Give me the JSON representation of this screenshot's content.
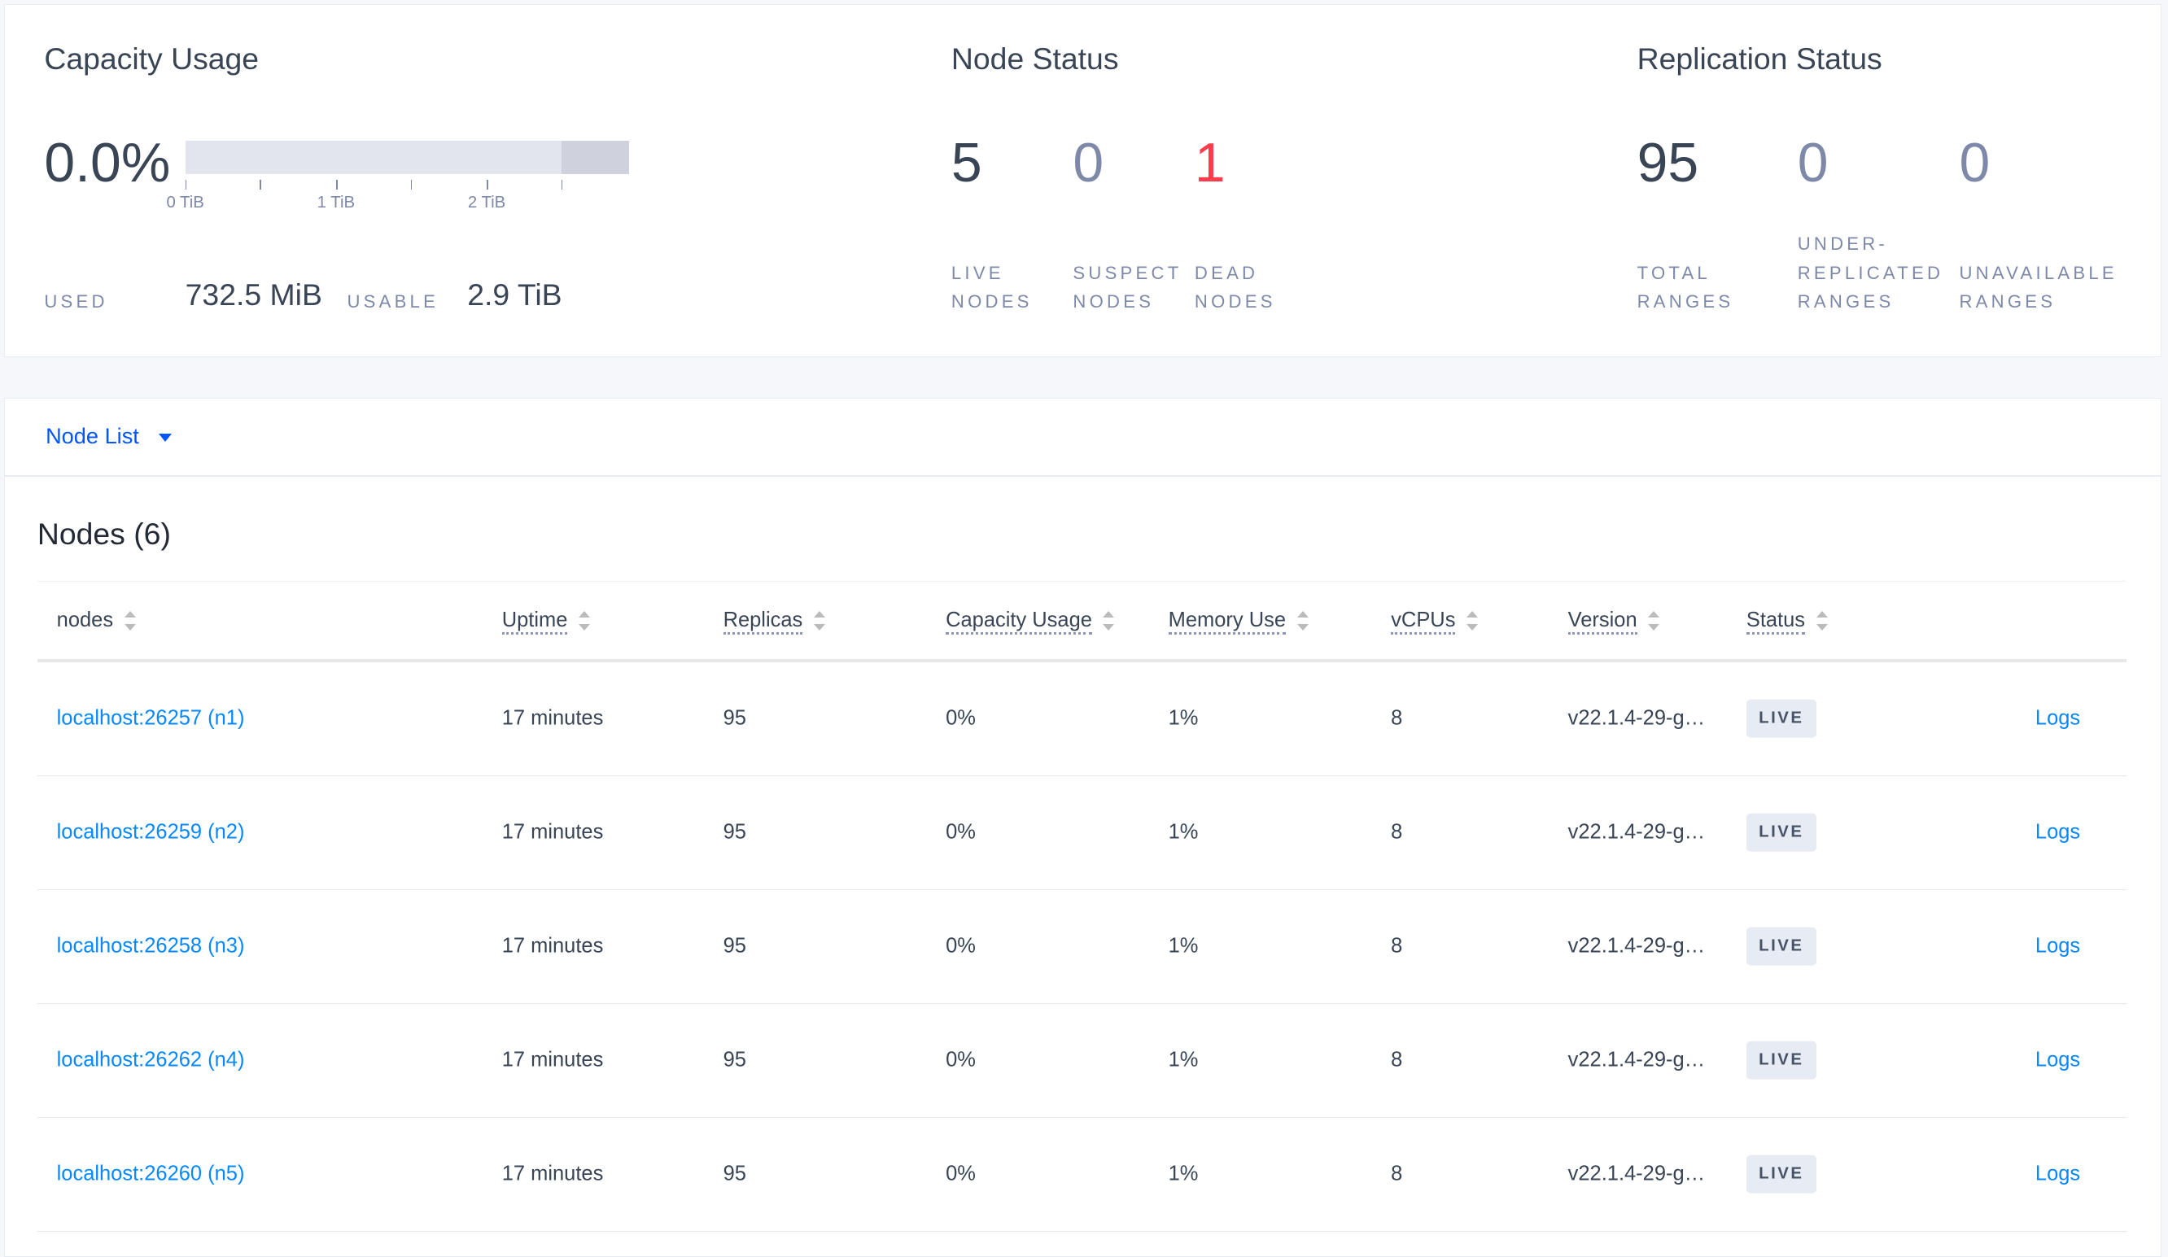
{
  "capacity": {
    "title": "Capacity Usage",
    "percent": "0.0%",
    "usage_fraction": 0.0,
    "ticks": [
      "0 TiB",
      "1 TiB",
      "2 TiB"
    ],
    "used_label": "USED",
    "used_value": "732.5 MiB",
    "usable_label": "USABLE",
    "usable_value": "2.9 TiB"
  },
  "node_status": {
    "title": "Node Status",
    "live": {
      "value": "5",
      "label1": "LIVE",
      "label2": "NODES"
    },
    "suspect": {
      "value": "0",
      "label1": "SUSPECT",
      "label2": "NODES"
    },
    "dead": {
      "value": "1",
      "label1": "DEAD",
      "label2": "NODES"
    }
  },
  "replication": {
    "title": "Replication Status",
    "total": {
      "value": "95",
      "label1": "TOTAL",
      "label2": "RANGES"
    },
    "under": {
      "value": "0",
      "label0": "UNDER-",
      "label1": "REPLICATED",
      "label2": "RANGES"
    },
    "unavailable": {
      "value": "0",
      "label1": "UNAVAILABLE",
      "label2": "RANGES"
    }
  },
  "colors": {
    "dark": "#394455",
    "muted": "#7e89a9",
    "dead": "#ff3b4e",
    "link": "#0788ff",
    "accent": "#0055ff"
  },
  "node_list": {
    "dropdown_label": "Node List",
    "table_title": "Nodes (6)",
    "columns": [
      "nodes",
      "Uptime",
      "Replicas",
      "Capacity Usage",
      "Memory Use",
      "vCPUs",
      "Version",
      "Status"
    ],
    "rows": [
      {
        "node": "localhost:26257 (n1)",
        "uptime": "17 minutes",
        "replicas": "95",
        "capacity": "0%",
        "memory": "1%",
        "vcpus": "8",
        "version": "v22.1.4-29-g…",
        "status": "LIVE",
        "logs": "Logs"
      },
      {
        "node": "localhost:26259 (n2)",
        "uptime": "17 minutes",
        "replicas": "95",
        "capacity": "0%",
        "memory": "1%",
        "vcpus": "8",
        "version": "v22.1.4-29-g…",
        "status": "LIVE",
        "logs": "Logs"
      },
      {
        "node": "localhost:26258 (n3)",
        "uptime": "17 minutes",
        "replicas": "95",
        "capacity": "0%",
        "memory": "1%",
        "vcpus": "8",
        "version": "v22.1.4-29-g…",
        "status": "LIVE",
        "logs": "Logs"
      },
      {
        "node": "localhost:26262 (n4)",
        "uptime": "17 minutes",
        "replicas": "95",
        "capacity": "0%",
        "memory": "1%",
        "vcpus": "8",
        "version": "v22.1.4-29-g…",
        "status": "LIVE",
        "logs": "Logs"
      },
      {
        "node": "localhost:26260 (n5)",
        "uptime": "17 minutes",
        "replicas": "95",
        "capacity": "0%",
        "memory": "1%",
        "vcpus": "8",
        "version": "v22.1.4-29-g…",
        "status": "LIVE",
        "logs": "Logs"
      }
    ]
  }
}
